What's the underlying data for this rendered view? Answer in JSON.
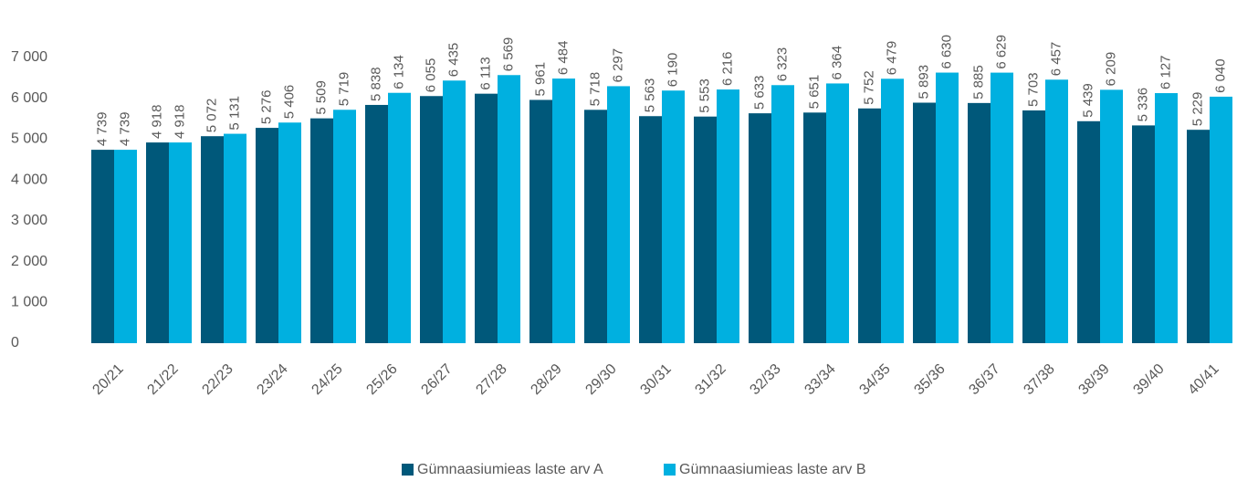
{
  "chart_data": {
    "type": "bar",
    "categories": [
      "20/21",
      "21/22",
      "22/23",
      "23/24",
      "24/25",
      "25/26",
      "26/27",
      "27/28",
      "28/29",
      "29/30",
      "30/31",
      "31/32",
      "32/33",
      "33/34",
      "34/35",
      "35/36",
      "36/37",
      "37/38",
      "38/39",
      "39/40",
      "40/41"
    ],
    "series": [
      {
        "name": "Gümnaasiumieas laste arv A",
        "color": "#00587a",
        "values": [
          4739,
          4918,
          5072,
          5276,
          5509,
          5838,
          6055,
          6113,
          5961,
          5718,
          5563,
          5553,
          5633,
          5651,
          5752,
          5893,
          5885,
          5703,
          5439,
          5336,
          5229
        ],
        "value_labels": [
          "4 739",
          "4 918",
          "5 072",
          "5 276",
          "5 509",
          "5 838",
          "6 055",
          "6 113",
          "5 961",
          "5 718",
          "5 563",
          "5 553",
          "5 633",
          "5 651",
          "5 752",
          "5 893",
          "5 885",
          "5 703",
          "5 439",
          "5 336",
          "5 229"
        ]
      },
      {
        "name": "Gümnaasiumieas laste arv B",
        "color": "#00b0e0",
        "values": [
          4739,
          4918,
          5131,
          5406,
          5719,
          6134,
          6435,
          6569,
          6484,
          6297,
          6190,
          6216,
          6323,
          6364,
          6479,
          6630,
          6629,
          6457,
          6209,
          6127,
          6040
        ],
        "value_labels": [
          "4 739",
          "4 918",
          "5 131",
          "5 406",
          "5 719",
          "6 134",
          "6 435",
          "6 569",
          "6 484",
          "6 297",
          "6 190",
          "6 216",
          "6 323",
          "6 364",
          "6 479",
          "6 630",
          "6 629",
          "6 457",
          "6 209",
          "6 127",
          "6 040"
        ]
      }
    ],
    "ylim": [
      0,
      7000
    ],
    "yticks": [
      0,
      {
        "value": 1000,
        "label": "1 000"
      },
      {
        "value": 2000,
        "label": "2 000"
      },
      {
        "value": 3000,
        "label": "3 000"
      },
      {
        "value": 4000,
        "label": "4 000"
      },
      {
        "value": 5000,
        "label": "5 000"
      },
      {
        "value": 6000,
        "label": "6 000"
      },
      {
        "value": 7000,
        "label": "7 000"
      }
    ],
    "grid": false,
    "legend": "bottom"
  }
}
